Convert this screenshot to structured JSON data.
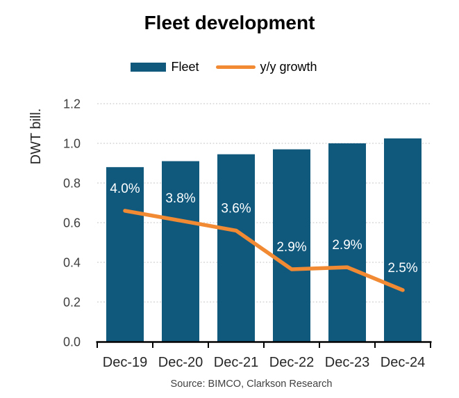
{
  "chart_data": {
    "type": "bar+line",
    "title": "Fleet development",
    "ylabel": "DWT bill.",
    "xlabel": "",
    "source": "Source: BIMCO, Clarkson Research",
    "categories": [
      "Dec-19",
      "Dec-20",
      "Dec-21",
      "Dec-22",
      "Dec-23",
      "Dec-24"
    ],
    "series": [
      {
        "name": "Fleet",
        "type": "bar",
        "values": [
          0.88,
          0.91,
          0.945,
          0.97,
          1.0,
          1.025
        ]
      },
      {
        "name": "y/y growth",
        "type": "line",
        "values_pct": [
          4.0,
          3.8,
          3.6,
          2.9,
          2.9,
          2.5
        ],
        "labels": [
          "4.0%",
          "3.8%",
          "3.6%",
          "2.9%",
          "2.9%",
          "2.5%"
        ],
        "axis_positions": [
          0.66,
          0.61,
          0.56,
          0.365,
          0.375,
          0.26
        ]
      }
    ],
    "y_axis": {
      "min": 0.0,
      "max": 1.2,
      "tick_step": 0.2,
      "tick_labels": [
        "0.0",
        "0.2",
        "0.4",
        "0.6",
        "0.8",
        "1.0",
        "1.2"
      ]
    },
    "grid": true,
    "legend_position": "top"
  },
  "colors": {
    "bar": "#10597D",
    "line": "#F18A32",
    "grid": "#D9D9D9",
    "axis": "#000000",
    "tick_text": "#3F3F3F",
    "bar_label_text": "#FFFFFF",
    "source_text": "#404040"
  }
}
